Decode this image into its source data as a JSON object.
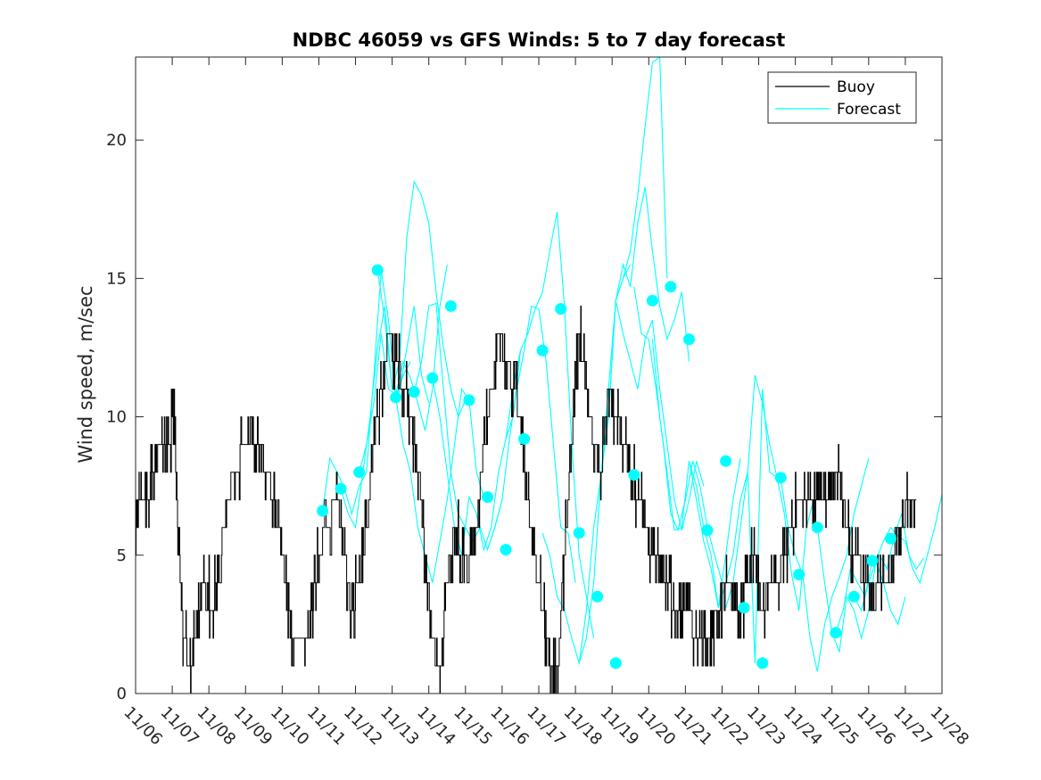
{
  "chart_data": {
    "type": "line",
    "title": "NDBC 46059 vs GFS Winds: 5 to 7 day forecast",
    "xlabel": "",
    "ylabel": "Wind speed, m/sec",
    "xlim": [
      0,
      22
    ],
    "ylim": [
      0,
      23
    ],
    "x_ticks": [
      0,
      1,
      2,
      3,
      4,
      5,
      6,
      7,
      8,
      9,
      10,
      11,
      12,
      13,
      14,
      15,
      16,
      17,
      18,
      19,
      20,
      21,
      22
    ],
    "x_tick_labels": [
      "11/06",
      "11/07",
      "11/08",
      "11/09",
      "11/10",
      "11/11",
      "11/12",
      "11/13",
      "11/14",
      "11/15",
      "11/16",
      "11/17",
      "11/18",
      "11/19",
      "11/20",
      "11/21",
      "11/22",
      "11/23",
      "11/24",
      "11/25",
      "11/26",
      "11/27",
      "11/28"
    ],
    "y_ticks": [
      0,
      5,
      10,
      15,
      20
    ],
    "y_tick_labels": [
      "0",
      "5",
      "10",
      "15",
      "20"
    ],
    "grid": false,
    "legend": {
      "location": "top-right",
      "entries": [
        "Buoy",
        "Forecast"
      ]
    },
    "colors": {
      "buoy": "#000000",
      "forecast": "#00FFFF",
      "marker": "#00FFFF",
      "axes": "#262626"
    },
    "series": [
      {
        "name": "Buoy",
        "x": [
          0,
          0.1,
          0.3,
          0.5,
          0.7,
          0.9,
          1.05,
          1.15,
          1.3,
          1.5,
          1.7,
          1.9,
          2.1,
          2.3,
          2.5,
          2.7,
          3.0,
          3.3,
          3.6,
          3.9,
          4.1,
          4.3,
          4.6,
          4.8,
          5.0,
          5.2,
          5.5,
          5.7,
          5.9,
          6.1,
          6.3,
          6.5,
          6.7,
          6.9,
          7.1,
          7.3,
          7.5,
          7.7,
          7.9,
          8.1,
          8.3,
          8.5,
          8.7,
          8.9,
          9.1,
          9.3,
          9.5,
          9.7,
          9.9,
          10.1,
          10.3,
          10.5,
          10.7,
          10.9,
          11.1,
          11.3,
          11.5,
          11.7,
          11.9,
          12.1,
          12.3,
          12.5,
          12.7,
          12.9,
          13.1,
          13.3,
          13.5,
          13.7,
          13.9,
          14.1,
          14.3,
          14.5,
          14.7,
          14.9,
          15.1,
          15.3,
          15.5,
          15.7,
          15.9,
          16.1,
          16.3,
          16.5,
          16.7,
          16.9,
          17.1,
          17.3,
          17.5,
          17.7,
          17.9,
          18.1,
          18.3,
          18.5,
          18.7,
          18.9,
          19.1,
          19.3,
          19.5,
          19.7,
          19.9,
          20.1,
          20.3,
          20.5,
          20.7,
          20.9,
          21.1,
          21.3
        ],
        "values": [
          6,
          7,
          7,
          8,
          9,
          9,
          10,
          6,
          2,
          1,
          3,
          4,
          3,
          5,
          7,
          8,
          9,
          9,
          8,
          6,
          4,
          2,
          2,
          3,
          5,
          6,
          7,
          5,
          3,
          4,
          6,
          9,
          11,
          13,
          12,
          11,
          10,
          8,
          5,
          2,
          0.5,
          4,
          6,
          5,
          5,
          6,
          9,
          11,
          13,
          12,
          11,
          10,
          7,
          5,
          3,
          1,
          0.5,
          5,
          9,
          13,
          11,
          9,
          8,
          11,
          10,
          9,
          8,
          7,
          6,
          5,
          5,
          4,
          3,
          3,
          3,
          2,
          2,
          2,
          3,
          4,
          4,
          3,
          4,
          5,
          3,
          4,
          4,
          5,
          6,
          7,
          7,
          7,
          7,
          7,
          8,
          7,
          5,
          5,
          4,
          3,
          4,
          4,
          5,
          6,
          7,
          7
        ]
      },
      {
        "name": "Forecast",
        "runs": [
          {
            "x": [
              5.1,
              5.3,
              5.5,
              5.7,
              5.9,
              6.1,
              6.3,
              6.5,
              6.7,
              6.9,
              7.1,
              7.3,
              7.5
            ],
            "values": [
              6.6,
              8.5,
              8.0,
              7.4,
              6.5,
              7.5,
              8.0,
              11.5,
              15.3,
              13.5,
              10.7,
              11.5,
              12.0
            ]
          },
          {
            "x": [
              5.6,
              5.8,
              6.0,
              6.2,
              6.4,
              6.6,
              6.8,
              7.0,
              7.2,
              7.4,
              7.6,
              7.8,
              8.0
            ],
            "values": [
              7.4,
              6.5,
              6.0,
              8.0,
              10.0,
              12.5,
              14.0,
              11.0,
              10.9,
              12.5,
              14.0,
              11.5,
              10.5
            ]
          },
          {
            "x": [
              6.1,
              6.3,
              6.5,
              6.7,
              6.9,
              7.1,
              7.3,
              7.5,
              7.7,
              7.9,
              8.1,
              8.3,
              8.5
            ],
            "values": [
              8.0,
              9.0,
              10.5,
              13.0,
              11.0,
              10.8,
              12.0,
              11.4,
              10.5,
              9.5,
              11.0,
              14.0,
              15.5
            ]
          },
          {
            "x": [
              6.6,
              6.8,
              7.0,
              7.2,
              7.4,
              7.6,
              7.8,
              8.0,
              8.2,
              8.4,
              8.6,
              8.8,
              9.0
            ],
            "values": [
              15.3,
              13.5,
              11.0,
              12.0,
              16.5,
              18.5,
              18.0,
              17.0,
              14.5,
              12.5,
              11.0,
              10.0,
              10.6
            ]
          },
          {
            "x": [
              7.1,
              7.3,
              7.5,
              7.7,
              7.9,
              8.1,
              8.3,
              8.5,
              8.7,
              8.9,
              9.1,
              9.3,
              9.5
            ],
            "values": [
              10.7,
              9.0,
              8.0,
              6.0,
              5.0,
              4.0,
              5.5,
              7.0,
              9.0,
              11.0,
              10.6,
              8.0,
              7.1
            ]
          },
          {
            "x": [
              7.6,
              7.8,
              8.0,
              8.2,
              8.4,
              8.6,
              8.8,
              9.0,
              9.2,
              9.4,
              9.6,
              9.8,
              10.0
            ],
            "values": [
              10.9,
              12.0,
              14.0,
              14.1,
              11.0,
              8.0,
              6.5,
              6.0,
              5.5,
              6.0,
              5.2,
              6.0,
              7.0
            ]
          },
          {
            "x": [
              8.1,
              8.3,
              8.5,
              8.7,
              8.9,
              9.1,
              9.3,
              9.5,
              9.7,
              9.9,
              10.1,
              10.3,
              10.5
            ],
            "values": [
              11.4,
              10.0,
              8.0,
              6.0,
              5.0,
              7.1,
              6.5,
              5.2,
              6.0,
              8.0,
              9.2,
              11.0,
              12.4
            ]
          },
          {
            "x": [
              9.6,
              9.8,
              10.0,
              10.2,
              10.4,
              10.6,
              10.8,
              11.0,
              11.2,
              11.4,
              11.6,
              11.8,
              12.0
            ],
            "values": [
              5.2,
              6.0,
              7.0,
              9.2,
              11.0,
              12.4,
              14.0,
              13.9,
              12.0,
              9.0,
              6.0,
              5.8,
              4.0
            ]
          },
          {
            "x": [
              10.1,
              10.3,
              10.5,
              10.7,
              10.9,
              11.1,
              11.3,
              11.5,
              11.7,
              11.9,
              12.1,
              12.3,
              12.5
            ],
            "values": [
              9.2,
              10.0,
              12.4,
              13.0,
              13.9,
              14.5,
              16.0,
              17.4,
              14.0,
              9.0,
              5.0,
              3.5,
              2.0
            ]
          },
          {
            "x": [
              11.1,
              11.3,
              11.5,
              11.7,
              11.9,
              12.1,
              12.3,
              12.5,
              12.7,
              12.9,
              13.1,
              13.3,
              13.5
            ],
            "values": [
              5.8,
              5.0,
              3.5,
              3.0,
              2.0,
              1.1,
              2.0,
              4.0,
              7.9,
              10.0,
              14.2,
              15.0,
              15.5
            ]
          },
          {
            "x": [
              12.1,
              12.3,
              12.5,
              12.7,
              12.9,
              13.1,
              13.3,
              13.5,
              13.7,
              13.9,
              14.1,
              14.3,
              14.5
            ],
            "values": [
              1.1,
              3.0,
              6.0,
              7.9,
              11.0,
              14.2,
              15.0,
              16.0,
              18.0,
              20.5,
              22.8,
              23.0,
              15.0
            ]
          },
          {
            "x": [
              12.7,
              12.9,
              13.1,
              13.3,
              13.5,
              13.7,
              13.9,
              14.1,
              14.3,
              14.5,
              14.7,
              14.9,
              15.1
            ],
            "values": [
              7.9,
              10.0,
              14.2,
              15.5,
              14.7,
              17.0,
              18.3,
              16.0,
              14.0,
              12.8,
              13.5,
              14.5,
              12.0
            ]
          },
          {
            "x": [
              13.1,
              13.3,
              13.5,
              13.7,
              13.9,
              14.1,
              14.3,
              14.5,
              14.7,
              14.9,
              15.1,
              15.3,
              15.5
            ],
            "values": [
              14.2,
              13.0,
              12.0,
              11.0,
              12.8,
              13.5,
              11.0,
              9.0,
              7.0,
              5.9,
              7.0,
              8.4,
              7.5
            ]
          },
          {
            "x": [
              13.6,
              13.8,
              14.0,
              14.2,
              14.4,
              14.6,
              14.8,
              15.0,
              15.2,
              15.4,
              15.6,
              15.8,
              16.0
            ],
            "values": [
              14.7,
              13.0,
              12.8,
              11.0,
              9.0,
              6.5,
              5.9,
              7.0,
              8.4,
              7.5,
              6.0,
              5.0,
              4.0
            ]
          },
          {
            "x": [
              14.1,
              14.3,
              14.5,
              14.7,
              14.9,
              15.1,
              15.3,
              15.5,
              15.7,
              15.9,
              16.1,
              16.3,
              16.5
            ],
            "values": [
              12.8,
              10.0,
              8.0,
              5.9,
              6.0,
              8.4,
              7.0,
              5.5,
              4.5,
              3.1,
              5.0,
              7.0,
              8.5
            ]
          },
          {
            "x": [
              15.1,
              15.3,
              15.5,
              15.7,
              15.9,
              16.1,
              16.3,
              16.5,
              16.7,
              16.9,
              17.1,
              17.3,
              17.5
            ],
            "values": [
              8.4,
              7.5,
              6.0,
              5.0,
              3.1,
              4.0,
              5.0,
              7.0,
              8.0,
              1.1,
              11.0,
              8.0,
              7.8
            ]
          },
          {
            "x": [
              16.1,
              16.3,
              16.5,
              16.7,
              16.9,
              17.1,
              17.3,
              17.5,
              17.7,
              17.9,
              18.1,
              18.3,
              18.5
            ],
            "values": [
              3.1,
              4.0,
              6.0,
              8.0,
              11.5,
              10.5,
              9.0,
              7.8,
              6.5,
              4.3,
              3.0,
              6.0,
              7.0
            ]
          },
          {
            "x": [
              17.6,
              17.8,
              18.0,
              18.2,
              18.4,
              18.6,
              18.8,
              19.0,
              19.2,
              19.4,
              19.6,
              19.8,
              20.0
            ],
            "values": [
              7.8,
              6.0,
              5.0,
              4.3,
              2.0,
              0.8,
              2.5,
              3.5,
              4.2,
              5.0,
              6.5,
              7.5,
              8.5
            ]
          },
          {
            "x": [
              18.6,
              18.8,
              19.0,
              19.2,
              19.4,
              19.6,
              19.8,
              20.0,
              20.2,
              20.4,
              20.6,
              20.8,
              21.0
            ],
            "values": [
              6.0,
              4.0,
              2.2,
              1.5,
              3.5,
              3.0,
              2.0,
              3.0,
              4.8,
              4.0,
              3.0,
              2.5,
              3.5
            ]
          },
          {
            "x": [
              19.6,
              19.8,
              20.0,
              20.2,
              20.4,
              20.6,
              20.8,
              21.0,
              21.2,
              21.4,
              21.6,
              21.8,
              22.0
            ],
            "values": [
              3.5,
              3.0,
              4.0,
              4.8,
              5.5,
              6.0,
              5.7,
              5.5,
              4.5,
              4.0,
              5.0,
              6.0,
              7.2
            ]
          },
          {
            "x": [
              19.1,
              19.3,
              19.5,
              19.7,
              19.9,
              20.1,
              20.3,
              20.5,
              20.7,
              20.9,
              21.1,
              21.3,
              21.5
            ],
            "values": [
              2.2,
              3.0,
              4.5,
              4.0,
              3.5,
              4.8,
              5.0,
              4.5,
              5.7,
              6.5,
              5.0,
              4.5,
              4.9
            ]
          }
        ],
        "markers": {
          "x": [
            5.1,
            5.6,
            6.1,
            6.6,
            7.1,
            7.6,
            8.1,
            8.6,
            9.1,
            9.6,
            10.1,
            10.6,
            11.1,
            11.6,
            12.1,
            12.6,
            13.1,
            13.6,
            14.1,
            14.6,
            15.1,
            15.6,
            16.1,
            16.6,
            17.1,
            17.6,
            18.1,
            18.6,
            19.1,
            19.6,
            20.1,
            20.6
          ],
          "values": [
            6.6,
            7.4,
            8.0,
            15.3,
            10.7,
            10.9,
            11.4,
            14.0,
            10.6,
            7.1,
            5.2,
            9.2,
            12.4,
            13.9,
            5.8,
            3.5,
            1.1,
            7.9,
            14.2,
            14.7,
            12.8,
            5.9,
            8.4,
            3.1,
            1.1,
            7.8,
            4.3,
            6.0,
            2.2,
            3.5,
            4.8,
            5.6
          ]
        }
      }
    ]
  }
}
